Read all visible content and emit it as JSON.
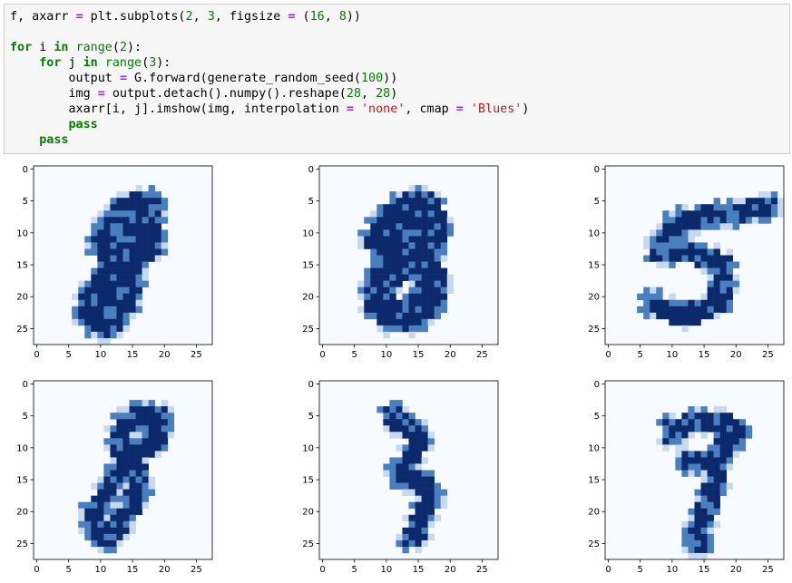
{
  "code": {
    "lines": [
      [
        [
          "",
          "f, axarr "
        ],
        [
          "op",
          "="
        ],
        [
          "",
          " plt.subplots("
        ],
        [
          "num",
          "2"
        ],
        [
          "",
          ", "
        ],
        [
          "num",
          "3"
        ],
        [
          "",
          ", figsize "
        ],
        [
          "op",
          "="
        ],
        [
          "",
          " ("
        ],
        [
          "num",
          "16"
        ],
        [
          "",
          ", "
        ],
        [
          "num",
          "8"
        ],
        [
          "",
          "))"
        ]
      ],
      [],
      [
        [
          "kw",
          "for"
        ],
        [
          "",
          " i "
        ],
        [
          "kw",
          "in"
        ],
        [
          "",
          " "
        ],
        [
          "bi",
          "range"
        ],
        [
          "",
          "("
        ],
        [
          "num",
          "2"
        ],
        [
          "",
          "):"
        ]
      ],
      [
        [
          "",
          "    "
        ],
        [
          "kw",
          "for"
        ],
        [
          "",
          " j "
        ],
        [
          "kw",
          "in"
        ],
        [
          "",
          " "
        ],
        [
          "bi",
          "range"
        ],
        [
          "",
          "("
        ],
        [
          "num",
          "3"
        ],
        [
          "",
          "):"
        ]
      ],
      [
        [
          "",
          "        output "
        ],
        [
          "op",
          "="
        ],
        [
          "",
          " G.forward(generate_random_seed("
        ],
        [
          "num",
          "100"
        ],
        [
          "",
          "))"
        ]
      ],
      [
        [
          "",
          "        img "
        ],
        [
          "op",
          "="
        ],
        [
          "",
          " output.detach().numpy().reshape("
        ],
        [
          "num",
          "28"
        ],
        [
          "",
          ", "
        ],
        [
          "num",
          "28"
        ],
        [
          "",
          ")"
        ]
      ],
      [
        [
          "",
          "        axarr[i, j].imshow(img, interpolation "
        ],
        [
          "op",
          "="
        ],
        [
          "",
          " "
        ],
        [
          "str",
          "'none'"
        ],
        [
          "",
          ", cmap "
        ],
        [
          "op",
          "="
        ],
        [
          "",
          " "
        ],
        [
          "str",
          "'Blues'"
        ],
        [
          "",
          ")"
        ]
      ],
      [
        [
          "",
          "        "
        ],
        [
          "kw",
          "pass"
        ]
      ],
      [
        [
          "",
          "    "
        ],
        [
          "kw",
          "pass"
        ]
      ]
    ]
  },
  "colors": {
    "dark": "#0c2a6b",
    "mid": "#4a7fbf",
    "light": "#c6d9ef",
    "background": "#f7fbff"
  },
  "axes": {
    "y_ticks": [
      "0",
      "5",
      "10",
      "15",
      "20",
      "25"
    ],
    "x_ticks": [
      "0",
      "5",
      "10",
      "15",
      "20",
      "25"
    ]
  },
  "chart_data": [
    {
      "type": "heatmap",
      "digit_shown": "8",
      "cmap": "Blues",
      "xlim": [
        0,
        27
      ],
      "ylim": [
        27,
        0
      ],
      "strokes": [
        [
          [
            17,
            6
          ],
          [
            14,
            7
          ],
          [
            12,
            9
          ],
          [
            11,
            12
          ],
          [
            13,
            15
          ],
          [
            15,
            14
          ],
          [
            17,
            12
          ],
          [
            17,
            9
          ],
          [
            16,
            7
          ]
        ],
        [
          [
            13,
            15
          ],
          [
            11,
            18
          ],
          [
            9,
            20
          ],
          [
            9,
            23
          ],
          [
            11,
            24
          ],
          [
            13,
            21
          ],
          [
            14,
            18
          ],
          [
            13,
            15
          ]
        ]
      ],
      "width": 3
    },
    {
      "type": "heatmap",
      "digit_shown": "8",
      "cmap": "Blues",
      "xlim": [
        0,
        27
      ],
      "ylim": [
        27,
        0
      ],
      "strokes": [
        [
          [
            15,
            6
          ],
          [
            12,
            7
          ],
          [
            10,
            9
          ],
          [
            9,
            11
          ],
          [
            11,
            13
          ],
          [
            13,
            14
          ],
          [
            16,
            12
          ],
          [
            17,
            9
          ],
          [
            16,
            6
          ]
        ],
        [
          [
            13,
            14
          ],
          [
            11,
            16
          ],
          [
            9,
            18
          ],
          [
            9,
            21
          ],
          [
            11,
            23
          ],
          [
            14,
            23
          ],
          [
            16,
            21
          ],
          [
            17,
            18
          ],
          [
            16,
            15
          ],
          [
            13,
            14
          ]
        ]
      ],
      "width": 3
    },
    {
      "type": "heatmap",
      "digit_shown": "5",
      "cmap": "Blues",
      "xlim": [
        0,
        27
      ],
      "ylim": [
        27,
        0
      ],
      "strokes": [
        [
          [
            25,
            6
          ],
          [
            19,
            7
          ],
          [
            12,
            8
          ],
          [
            10,
            9
          ]
        ],
        [
          [
            10,
            9
          ],
          [
            8,
            12
          ],
          [
            8,
            13
          ]
        ],
        [
          [
            8,
            13
          ],
          [
            12,
            13
          ],
          [
            16,
            14
          ],
          [
            18,
            15
          ],
          [
            18,
            18
          ],
          [
            17,
            21
          ],
          [
            15,
            22
          ],
          [
            12,
            23
          ],
          [
            9,
            22
          ],
          [
            7,
            21
          ]
        ]
      ],
      "width": 2
    },
    {
      "type": "heatmap",
      "digit_shown": "8",
      "cmap": "Blues",
      "xlim": [
        0,
        27
      ],
      "ylim": [
        27,
        0
      ],
      "strokes": [
        [
          [
            19,
            5
          ],
          [
            16,
            5
          ],
          [
            14,
            6
          ],
          [
            13,
            8
          ],
          [
            13,
            10
          ],
          [
            15,
            11
          ],
          [
            17,
            10
          ],
          [
            19,
            8
          ],
          [
            19,
            6
          ]
        ],
        [
          [
            15,
            11
          ],
          [
            13,
            14
          ],
          [
            11,
            17
          ],
          [
            9,
            20
          ],
          [
            9,
            23
          ],
          [
            11,
            24
          ],
          [
            13,
            22
          ],
          [
            15,
            19
          ],
          [
            16,
            16
          ],
          [
            15,
            11
          ]
        ]
      ],
      "width": 2
    },
    {
      "type": "heatmap",
      "digit_shown": "3",
      "cmap": "Blues",
      "xlim": [
        0,
        27
      ],
      "ylim": [
        27,
        0
      ],
      "strokes": [
        [
          [
            11,
            5
          ],
          [
            12,
            6
          ],
          [
            14,
            7
          ],
          [
            15,
            9
          ],
          [
            14,
            11
          ],
          [
            13,
            13
          ],
          [
            13,
            14
          ]
        ],
        [
          [
            12,
            14
          ],
          [
            14,
            15
          ],
          [
            16,
            16
          ],
          [
            17,
            18
          ],
          [
            16,
            20
          ],
          [
            15,
            22
          ],
          [
            15,
            23
          ]
        ],
        [
          [
            14,
            24
          ],
          [
            15,
            23
          ]
        ]
      ],
      "width": 2
    },
    {
      "type": "heatmap",
      "digit_shown": "7",
      "cmap": "Blues",
      "xlim": [
        0,
        27
      ],
      "ylim": [
        27,
        0
      ],
      "strokes": [
        [
          [
            10,
            8
          ],
          [
            10,
            7
          ],
          [
            14,
            6
          ],
          [
            18,
            6
          ],
          [
            20,
            7
          ],
          [
            19,
            9
          ]
        ],
        [
          [
            19,
            9
          ],
          [
            17,
            11
          ],
          [
            15,
            12
          ],
          [
            13,
            12
          ]
        ],
        [
          [
            17,
            12
          ],
          [
            17,
            15
          ],
          [
            16,
            18
          ],
          [
            15,
            21
          ],
          [
            14,
            23
          ],
          [
            14,
            25
          ]
        ]
      ],
      "width": 2
    }
  ]
}
